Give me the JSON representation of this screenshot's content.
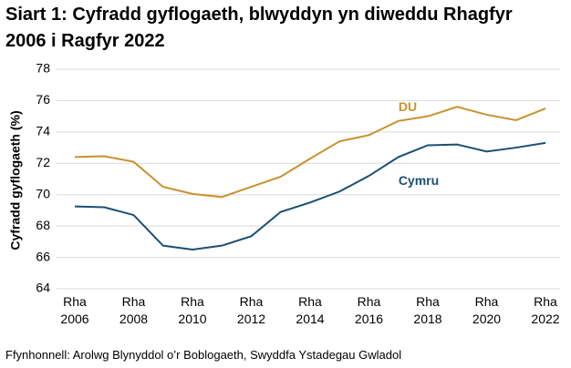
{
  "chart_data": {
    "type": "line",
    "title": "Siart 1: Cyfradd gyflogaeth, blwyddyn yn diweddu Rhagfyr 2006 i Ragfyr 2022",
    "y_label": "Cyfradd gyflogaeth (%)",
    "source": "Ffynhonnell: Arolwg Blynyddol o’r Boblogaeth, Swyddfa Ystadegau Gwladol",
    "categories": [
      "Rha 2006",
      null,
      "Rha 2008",
      null,
      "Rha 2010",
      null,
      "Rha 2012",
      null,
      "Rha 2014",
      null,
      "Rha 2016",
      null,
      "Rha 2018",
      null,
      "Rha 2020",
      null,
      "Rha 2022"
    ],
    "series": [
      {
        "name": "DU",
        "color": "#c8922e",
        "values": [
          72.4,
          72.45,
          72.1,
          70.5,
          70.05,
          69.85,
          70.5,
          71.15,
          72.3,
          73.4,
          73.8,
          74.7,
          75.0,
          75.6,
          75.1,
          74.75,
          75.5
        ]
      },
      {
        "name": "Cymru",
        "color": "#1b4f72",
        "values": [
          69.25,
          69.2,
          68.7,
          66.75,
          66.5,
          66.75,
          67.35,
          68.9,
          69.5,
          70.2,
          71.2,
          72.4,
          73.15,
          73.2,
          72.75,
          73.0,
          73.3
        ]
      }
    ],
    "ylim": [
      64,
      78
    ],
    "yticks": [
      64,
      66,
      68,
      70,
      72,
      74,
      76,
      78
    ],
    "grid": true
  }
}
